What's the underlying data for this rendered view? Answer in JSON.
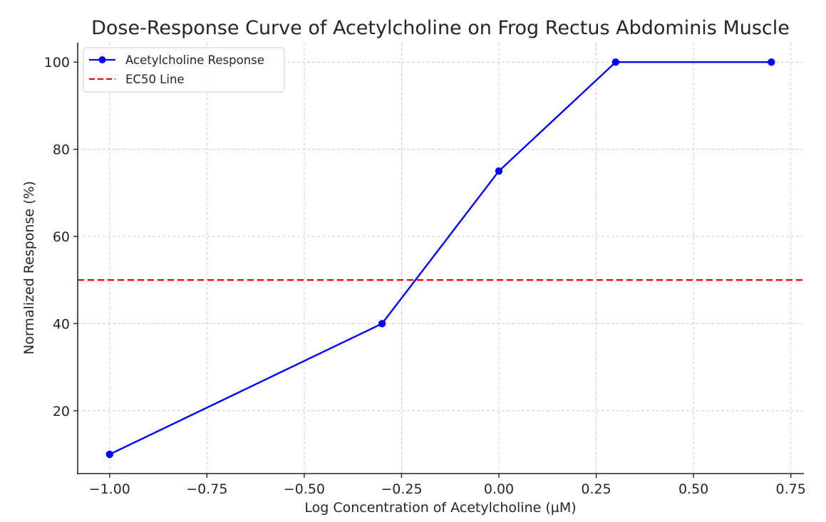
{
  "chart_data": {
    "type": "line",
    "title": "Dose-Response Curve of Acetylcholine on Frog Rectus Abdominis Muscle",
    "xlabel": "Log Concentration of Acetylcholine (µM)",
    "ylabel": "Normalized Response (%)",
    "xlim": [
      -1.085,
      0.785
    ],
    "ylim": [
      5.5,
      104.5
    ],
    "x_ticks": [
      -1.0,
      -0.75,
      -0.5,
      -0.25,
      0.0,
      0.25,
      0.5,
      0.75
    ],
    "x_tick_labels": [
      "−1.00",
      "−0.75",
      "−0.50",
      "−0.25",
      "0.00",
      "0.25",
      "0.50",
      "0.75"
    ],
    "y_ticks": [
      20,
      40,
      60,
      80,
      100
    ],
    "y_tick_labels": [
      "20",
      "40",
      "60",
      "80",
      "100"
    ],
    "grid": true,
    "legend_position": "upper left",
    "series": [
      {
        "name": "Acetylcholine Response",
        "style": "solid line with circle markers",
        "color": "#0000ff",
        "x": [
          -1.0,
          -0.3,
          0.0,
          0.3,
          0.7
        ],
        "y": [
          10,
          40,
          75,
          100,
          100
        ]
      },
      {
        "name": "EC50 Line",
        "style": "dashed horizontal line",
        "color": "#ff0000",
        "y_value": 50
      }
    ]
  },
  "colors": {
    "series_line": "#0000ff",
    "ec50_line": "#ff0000",
    "grid": "#cccccc",
    "axis": "#262626",
    "text": "#262626"
  }
}
